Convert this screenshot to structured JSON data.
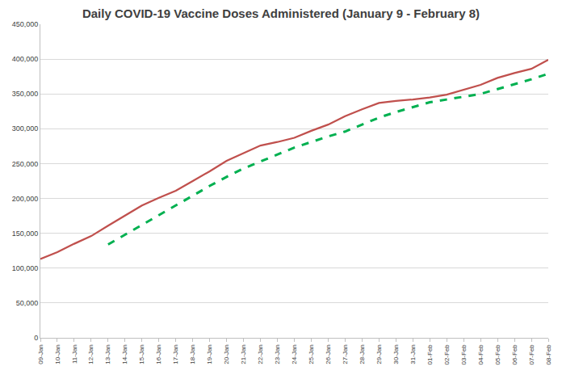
{
  "chart_data": {
    "type": "line",
    "title": "Daily COVID-19 Vaccine Doses Administered (January 9 - February 8)",
    "categories": [
      "09-Jan",
      "10-Jan",
      "11-Jan",
      "12-Jan",
      "13-Jan",
      "14-Jan",
      "15-Jan",
      "16-Jan",
      "17-Jan",
      "18-Jan",
      "19-Jan",
      "20-Jan",
      "21-Jan",
      "22-Jan",
      "23-Jan",
      "24-Jan",
      "25-Jan",
      "26-Jan",
      "27-Jan",
      "28-Jan",
      "29-Jan",
      "30-Jan",
      "31-Jan",
      "01-Feb",
      "02-Feb",
      "03-Feb",
      "04-Feb",
      "05-Feb",
      "06-Feb",
      "07-Feb",
      "08-Feb"
    ],
    "series": [
      {
        "color": "#c0504d",
        "line_style": "solid",
        "values": [
          113000,
          123000,
          135000,
          146000,
          161000,
          176000,
          190000,
          201000,
          211000,
          225000,
          239000,
          254000,
          265000,
          276000,
          281000,
          287000,
          297000,
          306000,
          318000,
          328000,
          337000,
          340000,
          342000,
          345000,
          349000,
          356000,
          363000,
          373000,
          380000,
          386000,
          399000
        ]
      },
      {
        "color": "#00b050",
        "line_style": "dashed",
        "values": [
          null,
          null,
          null,
          null,
          134000,
          148000,
          162000,
          176000,
          190000,
          204000,
          218000,
          231000,
          243000,
          253000,
          263000,
          273000,
          281000,
          289000,
          296000,
          306000,
          316000,
          324000,
          331000,
          338000,
          342000,
          346000,
          350000,
          357000,
          364000,
          371000,
          379000
        ]
      }
    ],
    "ylim": [
      0,
      450000
    ],
    "yticks": [
      0,
      {
        "value": 50000,
        "label": "50,000"
      },
      {
        "value": 100000,
        "label": "100,000"
      },
      {
        "value": 150000,
        "label": "150,000"
      },
      {
        "value": 200000,
        "label": "200,000"
      },
      {
        "value": 250000,
        "label": "250,000"
      },
      {
        "value": 300000,
        "label": "300,000"
      },
      {
        "value": 350000,
        "label": "350,000"
      },
      {
        "value": 400000,
        "label": "400,000"
      },
      {
        "value": 450000,
        "label": "450,000"
      }
    ],
    "grid": true
  }
}
